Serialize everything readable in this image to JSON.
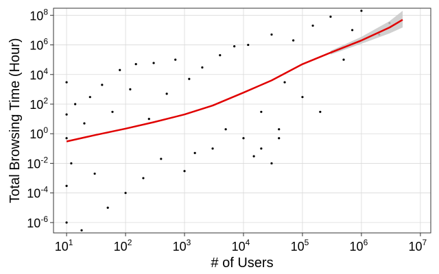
{
  "chart_data": {
    "type": "scatter",
    "title": "",
    "xlabel": "# of Users",
    "ylabel": "Total Browsing Time (Hour)",
    "x_scale": "log10",
    "y_scale": "log10",
    "xlim": [
      6,
      15000000
    ],
    "ylim": [
      2e-07,
      300000000
    ],
    "x_ticks": [
      {
        "base": "10",
        "exp": "1",
        "value": 10
      },
      {
        "base": "10",
        "exp": "2",
        "value": 100
      },
      {
        "base": "10",
        "exp": "3",
        "value": 1000
      },
      {
        "base": "10",
        "exp": "4",
        "value": 10000
      },
      {
        "base": "10",
        "exp": "5",
        "value": 100000
      },
      {
        "base": "10",
        "exp": "6",
        "value": 1000000
      },
      {
        "base": "10",
        "exp": "7",
        "value": 10000000
      }
    ],
    "y_ticks": [
      {
        "base": "10",
        "exp": "-6",
        "value": 1e-06
      },
      {
        "base": "10",
        "exp": "-4",
        "value": 0.0001
      },
      {
        "base": "10",
        "exp": "-2",
        "value": 0.01
      },
      {
        "base": "10",
        "exp": "0",
        "value": 1
      },
      {
        "base": "10",
        "exp": "2",
        "value": 100
      },
      {
        "base": "10",
        "exp": "4",
        "value": 10000
      },
      {
        "base": "10",
        "exp": "6",
        "value": 1000000
      },
      {
        "base": "10",
        "exp": "8",
        "value": 100000000
      }
    ],
    "grid": true,
    "point_color": "#000000",
    "trend_color": "#e00000",
    "band_color": "#c8c8c8",
    "trend_line": {
      "x": [
        10,
        30,
        100,
        300,
        1000,
        3000,
        10000,
        30000,
        100000,
        300000,
        1000000,
        3000000,
        5000000
      ],
      "y": [
        0.3,
        0.8,
        2.2,
        6,
        20,
        80,
        600,
        4000,
        50000,
        300000,
        2000000,
        15000000,
        50000000
      ]
    },
    "confidence_band": {
      "x": [
        300000,
        1000000,
        3000000,
        5000000
      ],
      "upper": [
        400000,
        3500000,
        40000000,
        200000000
      ],
      "lower": [
        220000,
        1200000,
        6000000,
        15000000
      ]
    },
    "points": [
      [
        10,
        0.0003
      ],
      [
        10,
        0.5
      ],
      [
        10,
        20
      ],
      [
        10,
        3000
      ],
      [
        10,
        1e-06
      ],
      [
        12,
        0.01
      ],
      [
        14,
        100
      ],
      [
        18,
        3e-07
      ],
      [
        20,
        5
      ],
      [
        25,
        300
      ],
      [
        30,
        0.002
      ],
      [
        40,
        2000
      ],
      [
        50,
        1e-05
      ],
      [
        60,
        30
      ],
      [
        80,
        20000
      ],
      [
        100,
        0.0001
      ],
      [
        120,
        1000
      ],
      [
        150,
        50000
      ],
      [
        200,
        0.001
      ],
      [
        250,
        10
      ],
      [
        300,
        60000
      ],
      [
        400,
        0.02
      ],
      [
        500,
        500
      ],
      [
        700,
        100000
      ],
      [
        1000,
        0.003
      ],
      [
        1200,
        5000
      ],
      [
        1500,
        0.05
      ],
      [
        2000,
        30000
      ],
      [
        3000,
        0.1
      ],
      [
        4000,
        200000
      ],
      [
        5000,
        2
      ],
      [
        7000,
        800000
      ],
      [
        10000,
        0.5
      ],
      [
        12000,
        1000000
      ],
      [
        15000,
        0.03
      ],
      [
        20000,
        30
      ],
      [
        30000,
        5000000
      ],
      [
        40000,
        2
      ],
      [
        50000,
        3000
      ],
      [
        70000,
        2000000
      ],
      [
        100000,
        300
      ],
      [
        150000,
        20000000
      ],
      [
        200000,
        30
      ],
      [
        300000,
        80000000
      ],
      [
        500000,
        100000
      ],
      [
        700000,
        10000000
      ],
      [
        1000000,
        200000000
      ],
      [
        2000000,
        5000000
      ],
      [
        3000000,
        30000000
      ],
      [
        30000,
        0.01
      ],
      [
        20000,
        0.1
      ],
      [
        40000,
        0.5
      ]
    ]
  }
}
